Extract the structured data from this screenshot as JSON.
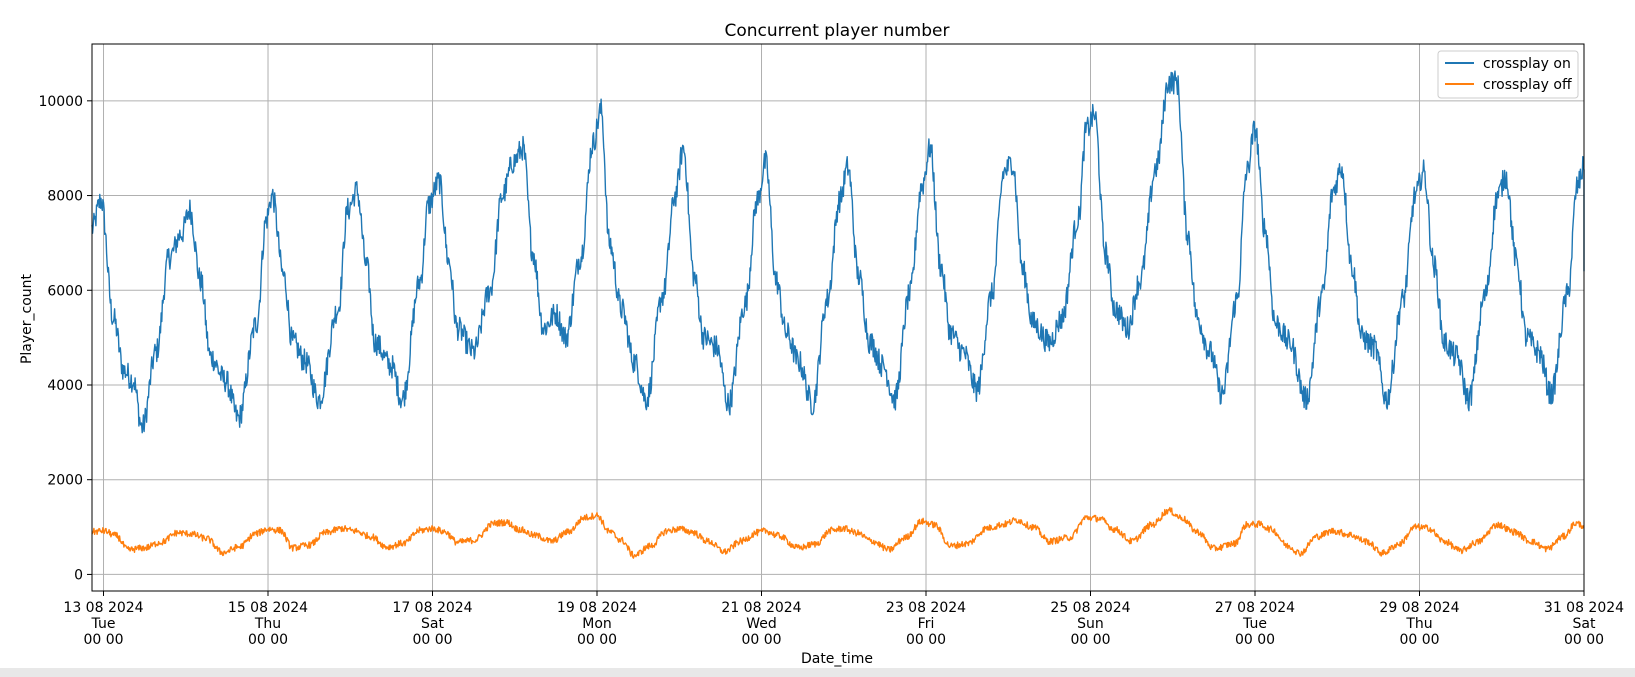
{
  "chart_data": {
    "type": "line",
    "title": "Concurrent player number",
    "xlabel": "Date_time",
    "ylabel": "Player_count",
    "grid": true,
    "legend_position": "top-right",
    "ylim": [
      -350,
      11200
    ],
    "xlim_days": [
      12.86,
      31.0
    ],
    "yticks": [
      0,
      2000,
      4000,
      6000,
      8000,
      10000
    ],
    "xticks": [
      {
        "day": 13,
        "date": "13 08 2024",
        "weekday": "Tue",
        "time": "00 00"
      },
      {
        "day": 15,
        "date": "15 08 2024",
        "weekday": "Thu",
        "time": "00 00"
      },
      {
        "day": 17,
        "date": "17 08 2024",
        "weekday": "Sat",
        "time": "00 00"
      },
      {
        "day": 19,
        "date": "19 08 2024",
        "weekday": "Mon",
        "time": "00 00"
      },
      {
        "day": 21,
        "date": "21 08 2024",
        "weekday": "Wed",
        "time": "00 00"
      },
      {
        "day": 23,
        "date": "23 08 2024",
        "weekday": "Fri",
        "time": "00 00"
      },
      {
        "day": 25,
        "date": "25 08 2024",
        "weekday": "Sun",
        "time": "00 00"
      },
      {
        "day": 27,
        "date": "27 08 2024",
        "weekday": "Tue",
        "time": "00 00"
      },
      {
        "day": 29,
        "date": "29 08 2024",
        "weekday": "Thu",
        "time": "00 00"
      },
      {
        "day": 31,
        "date": "31 08 2024",
        "weekday": "Sat",
        "time": "00 00"
      }
    ],
    "x_unit": "day of August 2024",
    "series": [
      {
        "name": "crossplay on",
        "color": "#1f77b4",
        "noise": 260,
        "points": [
          [
            12.86,
            7300
          ],
          [
            12.97,
            7900
          ],
          [
            13.12,
            5400
          ],
          [
            13.25,
            4300
          ],
          [
            13.36,
            4100
          ],
          [
            13.47,
            3100
          ],
          [
            13.64,
            4700
          ],
          [
            13.8,
            6700
          ],
          [
            13.95,
            7200
          ],
          [
            14.05,
            7700
          ],
          [
            14.18,
            6200
          ],
          [
            14.3,
            4600
          ],
          [
            14.48,
            4100
          ],
          [
            14.64,
            3300
          ],
          [
            14.86,
            5300
          ],
          [
            14.98,
            7500
          ],
          [
            15.05,
            8000
          ],
          [
            15.19,
            6300
          ],
          [
            15.3,
            4900
          ],
          [
            15.45,
            4500
          ],
          [
            15.62,
            3700
          ],
          [
            15.85,
            5600
          ],
          [
            15.97,
            7700
          ],
          [
            16.08,
            8100
          ],
          [
            16.2,
            6500
          ],
          [
            16.3,
            4900
          ],
          [
            16.5,
            4400
          ],
          [
            16.63,
            3700
          ],
          [
            16.85,
            6200
          ],
          [
            16.95,
            7800
          ],
          [
            17.08,
            8300
          ],
          [
            17.2,
            6600
          ],
          [
            17.3,
            5200
          ],
          [
            17.5,
            4700
          ],
          [
            17.7,
            6000
          ],
          [
            17.85,
            8000
          ],
          [
            17.98,
            8700
          ],
          [
            18.1,
            9000
          ],
          [
            18.22,
            6800
          ],
          [
            18.35,
            5200
          ],
          [
            18.5,
            5500
          ],
          [
            18.62,
            5000
          ],
          [
            18.8,
            6700
          ],
          [
            18.95,
            9100
          ],
          [
            19.05,
            9800
          ],
          [
            19.15,
            7000
          ],
          [
            19.3,
            5600
          ],
          [
            19.45,
            4500
          ],
          [
            19.6,
            3700
          ],
          [
            19.8,
            5900
          ],
          [
            19.95,
            8000
          ],
          [
            20.05,
            9000
          ],
          [
            20.18,
            6300
          ],
          [
            20.3,
            5000
          ],
          [
            20.45,
            4800
          ],
          [
            20.6,
            3600
          ],
          [
            20.8,
            5700
          ],
          [
            20.95,
            7900
          ],
          [
            21.05,
            8700
          ],
          [
            21.18,
            6200
          ],
          [
            21.3,
            5100
          ],
          [
            21.45,
            4500
          ],
          [
            21.62,
            3600
          ],
          [
            21.8,
            5800
          ],
          [
            21.95,
            7900
          ],
          [
            22.05,
            8600
          ],
          [
            22.18,
            6300
          ],
          [
            22.32,
            4900
          ],
          [
            22.48,
            4400
          ],
          [
            22.62,
            3700
          ],
          [
            22.8,
            5900
          ],
          [
            22.95,
            8200
          ],
          [
            23.05,
            9000
          ],
          [
            23.18,
            6500
          ],
          [
            23.3,
            5100
          ],
          [
            23.45,
            4700
          ],
          [
            23.62,
            3900
          ],
          [
            23.8,
            5900
          ],
          [
            23.95,
            8500
          ],
          [
            24.05,
            8700
          ],
          [
            24.18,
            6400
          ],
          [
            24.3,
            5300
          ],
          [
            24.5,
            4900
          ],
          [
            24.65,
            5400
          ],
          [
            24.85,
            7500
          ],
          [
            24.95,
            9400
          ],
          [
            25.05,
            9700
          ],
          [
            25.18,
            6800
          ],
          [
            25.3,
            5600
          ],
          [
            25.45,
            5200
          ],
          [
            25.6,
            6200
          ],
          [
            25.8,
            8600
          ],
          [
            25.95,
            10400
          ],
          [
            26.05,
            10400
          ],
          [
            26.18,
            7200
          ],
          [
            26.3,
            5400
          ],
          [
            26.45,
            4700
          ],
          [
            26.6,
            3800
          ],
          [
            26.78,
            5800
          ],
          [
            26.9,
            8500
          ],
          [
            27.0,
            9400
          ],
          [
            27.12,
            7300
          ],
          [
            27.25,
            5300
          ],
          [
            27.42,
            4900
          ],
          [
            27.62,
            3700
          ],
          [
            27.82,
            5900
          ],
          [
            27.95,
            8100
          ],
          [
            28.05,
            8600
          ],
          [
            28.18,
            6500
          ],
          [
            28.3,
            5000
          ],
          [
            28.45,
            4800
          ],
          [
            28.6,
            3700
          ],
          [
            28.8,
            5800
          ],
          [
            28.95,
            8000
          ],
          [
            29.05,
            8500
          ],
          [
            29.18,
            6500
          ],
          [
            29.3,
            4900
          ],
          [
            29.45,
            4600
          ],
          [
            29.6,
            3700
          ],
          [
            29.8,
            5900
          ],
          [
            29.95,
            8000
          ],
          [
            30.05,
            8400
          ],
          [
            30.18,
            6600
          ],
          [
            30.3,
            5000
          ],
          [
            30.45,
            4700
          ],
          [
            30.6,
            3800
          ],
          [
            30.8,
            5900
          ],
          [
            30.92,
            8200
          ],
          [
            31.0,
            8600
          ],
          [
            31.0,
            6400
          ]
        ]
      },
      {
        "name": "crossplay off",
        "color": "#ff7f0e",
        "noise": 70,
        "points": [
          [
            12.86,
            900
          ],
          [
            13.0,
            920
          ],
          [
            13.15,
            820
          ],
          [
            13.3,
            520
          ],
          [
            13.5,
            560
          ],
          [
            13.7,
            680
          ],
          [
            13.9,
            880
          ],
          [
            14.05,
            860
          ],
          [
            14.25,
            760
          ],
          [
            14.45,
            460
          ],
          [
            14.65,
            580
          ],
          [
            14.85,
            860
          ],
          [
            15.0,
            960
          ],
          [
            15.15,
            930
          ],
          [
            15.3,
            560
          ],
          [
            15.5,
            620
          ],
          [
            15.7,
            880
          ],
          [
            15.9,
            970
          ],
          [
            16.05,
            920
          ],
          [
            16.25,
            800
          ],
          [
            16.45,
            580
          ],
          [
            16.65,
            660
          ],
          [
            16.85,
            930
          ],
          [
            17.0,
            970
          ],
          [
            17.15,
            900
          ],
          [
            17.3,
            680
          ],
          [
            17.5,
            720
          ],
          [
            17.75,
            1080
          ],
          [
            17.9,
            1100
          ],
          [
            18.05,
            950
          ],
          [
            18.25,
            820
          ],
          [
            18.45,
            700
          ],
          [
            18.65,
            900
          ],
          [
            18.85,
            1200
          ],
          [
            19.0,
            1250
          ],
          [
            19.15,
            900
          ],
          [
            19.3,
            720
          ],
          [
            19.45,
            400
          ],
          [
            19.65,
            600
          ],
          [
            19.85,
            920
          ],
          [
            20.0,
            960
          ],
          [
            20.15,
            900
          ],
          [
            20.35,
            700
          ],
          [
            20.55,
            480
          ],
          [
            20.75,
            700
          ],
          [
            20.95,
            880
          ],
          [
            21.05,
            920
          ],
          [
            21.2,
            820
          ],
          [
            21.45,
            560
          ],
          [
            21.65,
            640
          ],
          [
            21.85,
            930
          ],
          [
            22.0,
            970
          ],
          [
            22.15,
            880
          ],
          [
            22.35,
            700
          ],
          [
            22.55,
            520
          ],
          [
            22.75,
            780
          ],
          [
            22.95,
            1120
          ],
          [
            23.1,
            1050
          ],
          [
            23.3,
            600
          ],
          [
            23.5,
            650
          ],
          [
            23.75,
            980
          ],
          [
            23.95,
            1060
          ],
          [
            24.1,
            1150
          ],
          [
            24.3,
            1000
          ],
          [
            24.5,
            700
          ],
          [
            24.75,
            780
          ],
          [
            24.95,
            1200
          ],
          [
            25.1,
            1180
          ],
          [
            25.3,
            950
          ],
          [
            25.5,
            700
          ],
          [
            25.75,
            1050
          ],
          [
            25.95,
            1350
          ],
          [
            26.1,
            1200
          ],
          [
            26.3,
            900
          ],
          [
            26.5,
            550
          ],
          [
            26.75,
            650
          ],
          [
            26.9,
            1050
          ],
          [
            27.05,
            1060
          ],
          [
            27.2,
            950
          ],
          [
            27.4,
            600
          ],
          [
            27.55,
            450
          ],
          [
            27.75,
            800
          ],
          [
            27.95,
            920
          ],
          [
            28.15,
            840
          ],
          [
            28.35,
            700
          ],
          [
            28.55,
            450
          ],
          [
            28.75,
            640
          ],
          [
            28.95,
            1000
          ],
          [
            29.1,
            980
          ],
          [
            29.3,
            700
          ],
          [
            29.5,
            500
          ],
          [
            29.7,
            680
          ],
          [
            29.95,
            1050
          ],
          [
            30.15,
            900
          ],
          [
            30.35,
            700
          ],
          [
            30.55,
            540
          ],
          [
            30.75,
            800
          ],
          [
            30.9,
            1080
          ],
          [
            31.0,
            1030
          ]
        ]
      }
    ]
  }
}
